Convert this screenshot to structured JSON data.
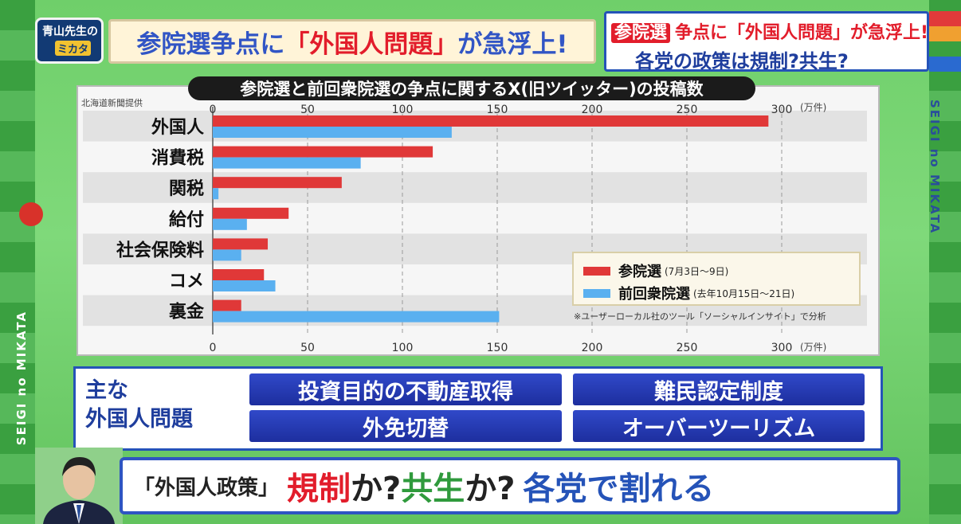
{
  "logo": {
    "line1": "青山先生の",
    "line2": "ミカタ"
  },
  "headline": {
    "part1": "参院選争点に",
    "part2": "「外国人問題」",
    "part3": "が急浮上!"
  },
  "top_right": {
    "tag": "参院選",
    "line1": "争点に「外国人問題」が急浮上!",
    "line2": "各党の政策は規制?共生?"
  },
  "side_text": {
    "left": "SEIGI no MIKATA",
    "right": "SEIGI no MIKATA"
  },
  "chart_data": {
    "type": "bar",
    "orientation": "horizontal",
    "title": "参院選と前回衆院選の争点に関するX(旧ツイッター)の投稿数",
    "source": "北海道新聞提供",
    "unit": "(万件)",
    "categories": [
      "外国人",
      "消費税",
      "関税",
      "給付",
      "社会保険料",
      "コメ",
      "裏金"
    ],
    "series": [
      {
        "name": "参院選",
        "period": "(7月3日〜9日)",
        "color": "#e03838",
        "values": [
          293,
          116,
          68,
          40,
          29,
          27,
          15
        ]
      },
      {
        "name": "前回衆院選",
        "period": "(去年10月15日〜21日)",
        "color": "#5ab0f0",
        "values": [
          126,
          78,
          3,
          18,
          15,
          33,
          151
        ]
      }
    ],
    "xlim": [
      0,
      300
    ],
    "ticks": [
      0,
      50,
      100,
      150,
      200,
      250,
      300
    ],
    "grid": true,
    "legend": "bottom-right",
    "note": "※ユーザーローカル社のツール「ソーシャルインサイト」で分析"
  },
  "issues": {
    "label1": "主な",
    "label2": "外国人問題",
    "items": [
      "投資目的の不動産取得",
      "難民認定制度",
      "外免切替",
      "オーバーツーリズム"
    ]
  },
  "bottom": {
    "part1": "「外国人政策」",
    "part2": "規制",
    "part3": "か?",
    "part4": "共生",
    "part5": "か?",
    "part6": "各党で割れる"
  }
}
